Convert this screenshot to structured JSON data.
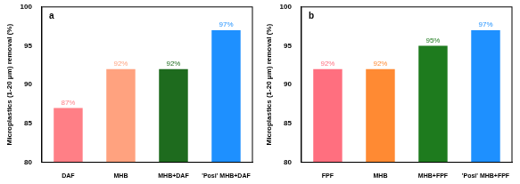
{
  "chart_data": [
    {
      "type": "bar",
      "title": "a",
      "y_label": "Microplastics (1-20 μm) removal (%)",
      "categories": [
        "DAF",
        "MHB",
        "MHB+DAF",
        "'Posi' MHB+DAF"
      ],
      "values": [
        87,
        92,
        92,
        97
      ],
      "value_labels": [
        "87%",
        "92%",
        "92%",
        "97%"
      ],
      "colors": [
        "#ff7f86",
        "#ffa27f",
        "#1e6b1e",
        "#1e90ff"
      ],
      "ylim": [
        80,
        100
      ],
      "yticks": [
        80,
        85,
        90,
        95,
        100
      ],
      "grid": false,
      "data_labels": true
    },
    {
      "type": "bar",
      "title": "b",
      "y_label": "Microplastics (1-20 μm) removal (%)",
      "categories": [
        "FPF",
        "MHB",
        "MHB+FPF",
        "'Posi' MHB+FPF"
      ],
      "values": [
        92,
        92,
        95,
        97
      ],
      "value_labels": [
        "92%",
        "92%",
        "95%",
        "97%"
      ],
      "colors": [
        "#ff6f7f",
        "#ff8a33",
        "#1e7b1e",
        "#1e90ff"
      ],
      "ylim": [
        80,
        100
      ],
      "yticks": [
        80,
        85,
        90,
        95,
        100
      ],
      "grid": false,
      "data_labels": true
    }
  ]
}
